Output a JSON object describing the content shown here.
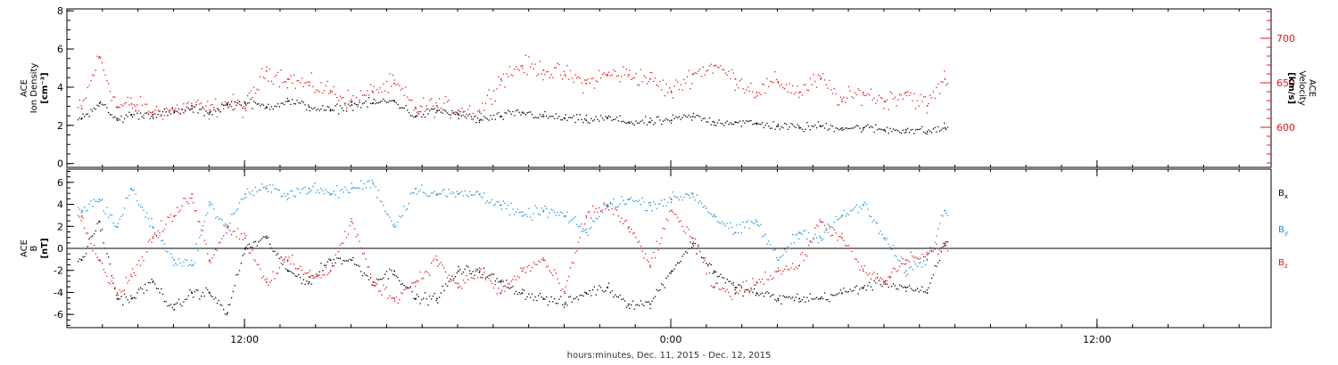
{
  "xaxis": {
    "caption": "hours:minutes, Dec. 11, 2015 - Dec. 12, 2015",
    "range_hours": [
      -17.0,
      16.9
    ],
    "ticks": [
      {
        "hour": -12,
        "label": "12:00"
      },
      {
        "hour": 0,
        "label": "0:00"
      },
      {
        "hour": 12,
        "label": "12:00"
      }
    ]
  },
  "chart_data": [
    {
      "type": "scatter",
      "ylabel_left": [
        "ACE",
        "Ion Density"
      ],
      "ylabel_left_unit": "[cm⁻³]",
      "ylabel_right": [
        "ACE",
        "Velocity"
      ],
      "ylabel_right_unit": "[km/s]",
      "ylim_left": [
        -0.2,
        8.1
      ],
      "left_ticks": [
        0,
        2,
        4,
        6,
        8
      ],
      "ylim_right": [
        555,
        733
      ],
      "right_ticks": [
        600,
        650,
        700
      ],
      "data_end_hour": 7.8,
      "series": [
        {
          "name": "Ion Density",
          "axis": "left",
          "color": "#000000",
          "x": [
            -16.6,
            -16.1,
            -15.6,
            -15.2,
            -14.6,
            -14.0,
            -13.5,
            -13.0,
            -12.5,
            -12.0,
            -11.4,
            -10.8,
            -10.2,
            -9.6,
            -9.0,
            -8.4,
            -7.8,
            -7.2,
            -6.6,
            -6.0,
            -5.4,
            -4.8,
            -4.2,
            -3.6,
            -3.0,
            -2.4,
            -1.8,
            -1.2,
            -0.6,
            0.0,
            0.6,
            1.2,
            1.8,
            2.4,
            3.0,
            3.6,
            4.2,
            4.8,
            5.4,
            6.0,
            6.6,
            7.2,
            7.7
          ],
          "y": [
            2.4,
            3.2,
            2.3,
            2.6,
            2.6,
            2.7,
            2.9,
            2.7,
            3.1,
            3.2,
            3.0,
            3.3,
            3.0,
            2.8,
            3.1,
            3.2,
            3.3,
            2.5,
            2.8,
            2.6,
            2.3,
            2.5,
            2.7,
            2.5,
            2.4,
            2.3,
            2.4,
            2.2,
            2.2,
            2.3,
            2.5,
            2.2,
            2.2,
            2.1,
            2.0,
            1.9,
            2.0,
            1.9,
            1.9,
            1.8,
            1.8,
            1.7,
            1.9
          ]
        },
        {
          "name": "Velocity",
          "axis": "right",
          "color": "#e8131b",
          "x": [
            -16.6,
            -16.1,
            -15.6,
            -15.2,
            -14.6,
            -14.0,
            -13.5,
            -13.0,
            -12.5,
            -12.0,
            -11.4,
            -10.8,
            -10.2,
            -9.6,
            -9.0,
            -8.4,
            -7.8,
            -7.2,
            -6.6,
            -6.0,
            -5.4,
            -4.8,
            -4.2,
            -3.6,
            -3.0,
            -2.4,
            -1.8,
            -1.2,
            -0.6,
            0.0,
            0.6,
            1.2,
            1.8,
            2.4,
            3.0,
            3.6,
            4.2,
            4.8,
            5.4,
            6.0,
            6.6,
            7.2,
            7.7
          ],
          "y": [
            622,
            680,
            623,
            627,
            618,
            620,
            625,
            620,
            628,
            622,
            664,
            655,
            648,
            642,
            630,
            640,
            650,
            622,
            625,
            620,
            618,
            655,
            670,
            665,
            660,
            650,
            660,
            660,
            655,
            640,
            660,
            670,
            655,
            640,
            652,
            640,
            655,
            630,
            640,
            630,
            640,
            625,
            655
          ]
        }
      ]
    },
    {
      "type": "scatter",
      "ylabel_left": [
        "ACE",
        "B"
      ],
      "ylabel_left_unit": "[nT]",
      "ylim": [
        -7.2,
        7.2
      ],
      "ticks": [
        -6,
        -4,
        -2,
        0,
        2,
        4,
        6
      ],
      "zero_line": true,
      "data_end_hour": 7.8,
      "legend_placement": "right",
      "series": [
        {
          "name": "B",
          "sub": "x",
          "color": "#000000",
          "x": [
            -16.6,
            -16.1,
            -15.6,
            -15.2,
            -14.6,
            -14.0,
            -13.5,
            -13.0,
            -12.5,
            -12.0,
            -11.4,
            -10.8,
            -10.2,
            -9.6,
            -9.0,
            -8.4,
            -7.8,
            -7.2,
            -6.6,
            -6.0,
            -5.4,
            -4.8,
            -4.2,
            -3.6,
            -3.0,
            -2.4,
            -1.8,
            -1.2,
            -0.6,
            0.0,
            0.6,
            1.2,
            1.8,
            2.4,
            3.0,
            3.6,
            4.2,
            4.8,
            5.4,
            6.0,
            6.6,
            7.2,
            7.7
          ],
          "y": [
            -1.0,
            2.5,
            -4.5,
            -4.5,
            -3.0,
            -5.5,
            -4.0,
            -4.0,
            -5.8,
            0.0,
            1.0,
            -2.0,
            -3.0,
            -1.0,
            -1.0,
            -3.0,
            -2.0,
            -4.5,
            -4.5,
            -2.0,
            -2.0,
            -3.0,
            -4.0,
            -4.5,
            -5.0,
            -4.0,
            -3.5,
            -5.0,
            -5.0,
            -2.0,
            0.5,
            -2.0,
            -3.5,
            -4.0,
            -4.5,
            -4.5,
            -4.5,
            -4.0,
            -3.5,
            -3.0,
            -3.5,
            -4.0,
            0.5
          ]
        },
        {
          "name": "B",
          "sub": "y",
          "color": "#1b8fd6",
          "x": [
            -16.6,
            -16.1,
            -15.6,
            -15.2,
            -14.6,
            -14.0,
            -13.5,
            -13.0,
            -12.5,
            -12.0,
            -11.4,
            -10.8,
            -10.2,
            -9.6,
            -9.0,
            -8.4,
            -7.8,
            -7.2,
            -6.6,
            -6.0,
            -5.4,
            -4.8,
            -4.2,
            -3.6,
            -3.0,
            -2.4,
            -1.8,
            -1.2,
            -0.6,
            0.0,
            0.6,
            1.2,
            1.8,
            2.4,
            3.0,
            3.6,
            4.2,
            4.8,
            5.4,
            6.0,
            6.6,
            7.2,
            7.7
          ],
          "y": [
            3.5,
            4.5,
            2.0,
            5.5,
            2.0,
            -1.0,
            -1.5,
            4.0,
            2.0,
            5.0,
            5.5,
            5.0,
            5.5,
            5.0,
            5.5,
            6.0,
            2.0,
            5.5,
            5.0,
            5.0,
            5.0,
            4.0,
            3.0,
            3.5,
            3.0,
            1.5,
            4.0,
            4.5,
            4.0,
            4.5,
            5.0,
            3.0,
            1.5,
            2.5,
            -1.0,
            1.5,
            1.0,
            3.0,
            4.0,
            1.0,
            -2.0,
            -1.0,
            3.5
          ]
        },
        {
          "name": "B",
          "sub": "z",
          "color": "#e8131b",
          "x": [
            -16.6,
            -16.1,
            -15.6,
            -15.2,
            -14.6,
            -14.0,
            -13.5,
            -13.0,
            -12.5,
            -12.0,
            -11.4,
            -10.8,
            -10.2,
            -9.6,
            -9.0,
            -8.4,
            -7.8,
            -7.2,
            -6.6,
            -6.0,
            -5.4,
            -4.8,
            -4.2,
            -3.6,
            -3.0,
            -2.4,
            -1.8,
            -1.2,
            -0.6,
            0.0,
            0.6,
            1.2,
            1.8,
            2.4,
            3.0,
            3.6,
            4.2,
            4.8,
            5.4,
            6.0,
            6.6,
            7.2,
            7.7
          ],
          "y": [
            3.0,
            -1.0,
            -4.0,
            -2.5,
            1.0,
            3.0,
            5.0,
            -1.0,
            2.0,
            1.0,
            -3.0,
            -1.0,
            -2.5,
            -2.0,
            2.5,
            -3.0,
            -4.5,
            -3.0,
            -1.0,
            -3.5,
            -2.0,
            -4.0,
            -2.0,
            -1.0,
            -4.0,
            3.0,
            4.0,
            2.0,
            -1.5,
            3.5,
            1.0,
            -3.5,
            -4.0,
            -3.0,
            -2.0,
            -1.5,
            2.5,
            1.0,
            -2.0,
            -3.0,
            -1.0,
            -0.5,
            0.3
          ]
        }
      ]
    }
  ]
}
